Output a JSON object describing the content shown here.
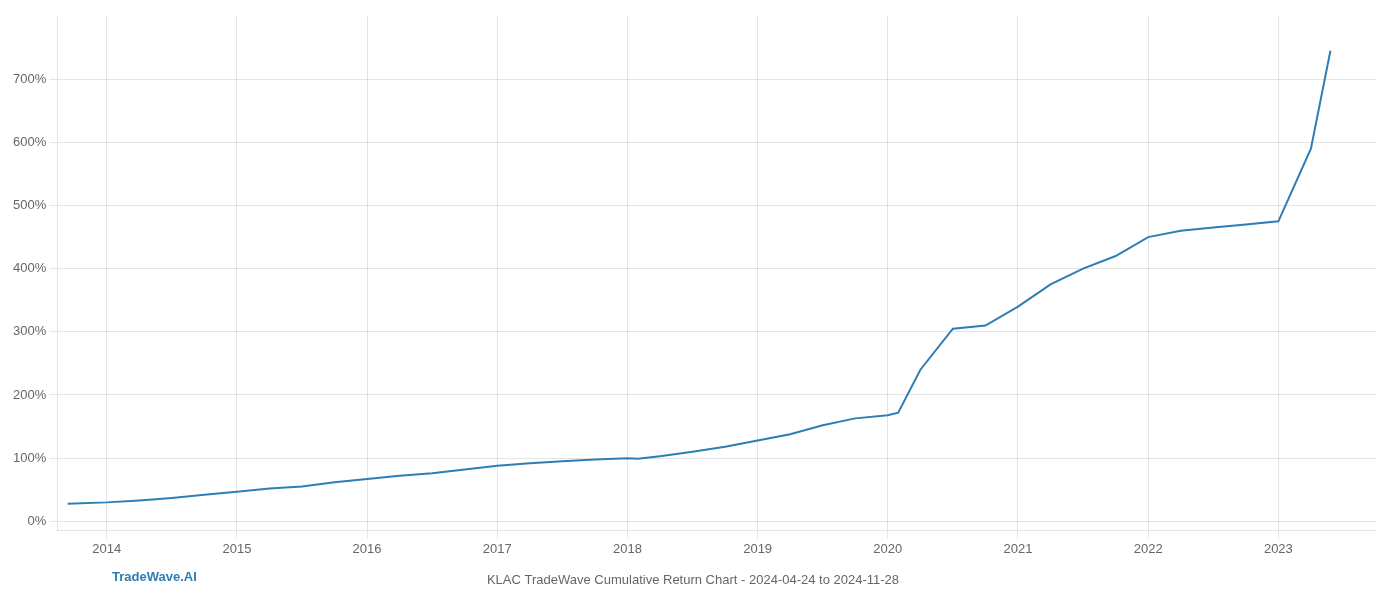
{
  "chart_data": {
    "type": "line",
    "title": "KLAC TradeWave Cumulative Return Chart - 2024-04-24 to 2024-11-28",
    "annotations": [
      "TradeWave.AI"
    ],
    "color": "#2d7eb5",
    "x": [
      2013.7,
      2014.0,
      2014.25,
      2014.5,
      2014.75,
      2015.0,
      2015.25,
      2015.5,
      2015.75,
      2016.0,
      2016.25,
      2016.5,
      2016.75,
      2017.0,
      2017.25,
      2017.5,
      2017.75,
      2018.0,
      2018.08,
      2018.25,
      2018.5,
      2018.75,
      2019.0,
      2019.25,
      2019.5,
      2019.75,
      2020.0,
      2020.08,
      2020.25,
      2020.5,
      2020.75,
      2021.0,
      2021.25,
      2021.5,
      2021.75,
      2022.0,
      2022.25,
      2022.5,
      2022.75,
      2023.0,
      2023.25,
      2023.4
    ],
    "values": [
      28,
      30,
      33,
      37,
      42,
      47,
      52,
      55,
      62,
      67,
      72,
      76,
      82,
      88,
      92,
      95,
      98,
      100,
      99,
      103,
      110,
      118,
      128,
      138,
      152,
      163,
      168,
      172,
      240,
      305,
      310,
      340,
      375,
      400,
      420,
      450,
      460,
      465,
      470,
      475,
      590,
      745
    ],
    "xlim": [
      2013.62,
      2023.75
    ],
    "xticks": [
      2014,
      2015,
      2016,
      2017,
      2018,
      2019,
      2020,
      2021,
      2022,
      2023
    ],
    "ylim": [
      -15,
      800
    ],
    "yticks": [
      {
        "value": 0,
        "label": "0%"
      },
      {
        "value": 100,
        "label": "100%"
      },
      {
        "value": 200,
        "label": "200%"
      },
      {
        "value": 300,
        "label": "300%"
      },
      {
        "value": 400,
        "label": "400%"
      },
      {
        "value": 500,
        "label": "500%"
      },
      {
        "value": 600,
        "label": "600%"
      },
      {
        "value": 700,
        "label": "700%"
      }
    ],
    "grid": true
  }
}
